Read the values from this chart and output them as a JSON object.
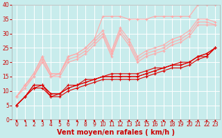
{
  "xlabel": "Vent moyen/en rafales ( km/h )",
  "xlim": [
    -0.5,
    23.5
  ],
  "ylim": [
    0,
    40
  ],
  "xticks": [
    0,
    1,
    2,
    3,
    4,
    5,
    6,
    7,
    8,
    9,
    10,
    11,
    12,
    13,
    14,
    15,
    16,
    17,
    18,
    19,
    20,
    21,
    22,
    23
  ],
  "yticks": [
    0,
    5,
    10,
    15,
    20,
    25,
    30,
    35,
    40
  ],
  "bg_color": "#c8ecec",
  "grid_color": "#ffffff",
  "series": [
    {
      "x": [
        0,
        1,
        2,
        3,
        4,
        5,
        6,
        7,
        8,
        9,
        10,
        11,
        12,
        13,
        14,
        15,
        16,
        17,
        18,
        19,
        20,
        21,
        22,
        23
      ],
      "y": [
        5,
        8,
        11,
        11,
        8,
        8,
        10,
        11,
        12,
        13,
        14,
        14,
        14,
        14,
        14,
        15,
        16,
        17,
        18,
        18,
        19,
        21,
        22,
        25
      ],
      "color": "#dd0000",
      "lw": 0.8,
      "marker": "+",
      "ms": 3.0
    },
    {
      "x": [
        0,
        1,
        2,
        3,
        4,
        5,
        6,
        7,
        8,
        9,
        10,
        11,
        12,
        13,
        14,
        15,
        16,
        17,
        18,
        19,
        20,
        21,
        22,
        23
      ],
      "y": [
        5,
        8,
        11,
        12,
        8,
        9,
        11,
        12,
        13,
        14,
        15,
        15,
        15,
        15,
        15,
        16,
        17,
        18,
        19,
        19,
        20,
        22,
        22,
        25
      ],
      "color": "#dd0000",
      "lw": 0.8,
      "marker": "+",
      "ms": 3.0
    },
    {
      "x": [
        0,
        1,
        2,
        3,
        4,
        5,
        6,
        7,
        8,
        9,
        10,
        11,
        12,
        13,
        14,
        15,
        16,
        17,
        18,
        19,
        20,
        21,
        22,
        23
      ],
      "y": [
        5,
        8,
        12,
        12,
        9,
        9,
        11,
        12,
        13,
        14,
        15,
        16,
        16,
        16,
        16,
        17,
        18,
        18,
        19,
        19,
        20,
        22,
        23,
        25
      ],
      "color": "#dd0000",
      "lw": 0.8,
      "marker": "+",
      "ms": 3.0
    },
    {
      "x": [
        0,
        1,
        2,
        3,
        4,
        5,
        6,
        7,
        8,
        9,
        10,
        11,
        12,
        13,
        14,
        15,
        16,
        17,
        18,
        19,
        20,
        21,
        22,
        23
      ],
      "y": [
        5,
        8,
        12,
        12,
        9,
        9,
        12,
        12,
        14,
        14,
        15,
        15,
        15,
        15,
        15,
        16,
        17,
        18,
        19,
        20,
        20,
        22,
        23,
        25
      ],
      "color": "#dd0000",
      "lw": 0.8,
      "marker": "+",
      "ms": 3.0
    },
    {
      "x": [
        0,
        1,
        2,
        3,
        4,
        5,
        6,
        7,
        8,
        9,
        10,
        11,
        12,
        13,
        14,
        15,
        16,
        17,
        18,
        19,
        20,
        21,
        22,
        23
      ],
      "y": [
        8,
        11,
        15,
        20,
        15,
        15,
        20,
        21,
        23,
        26,
        29,
        22,
        30,
        26,
        20,
        22,
        23,
        24,
        26,
        27,
        29,
        33,
        33,
        33
      ],
      "color": "#ffaaaa",
      "lw": 0.8,
      "marker": "+",
      "ms": 3.0
    },
    {
      "x": [
        0,
        1,
        2,
        3,
        4,
        5,
        6,
        7,
        8,
        9,
        10,
        11,
        12,
        13,
        14,
        15,
        16,
        17,
        18,
        19,
        20,
        21,
        22,
        23
      ],
      "y": [
        8,
        12,
        15,
        21,
        15,
        16,
        21,
        22,
        24,
        27,
        30,
        23,
        31,
        27,
        21,
        23,
        24,
        25,
        27,
        28,
        30,
        34,
        34,
        33
      ],
      "color": "#ffaaaa",
      "lw": 0.8,
      "marker": "+",
      "ms": 3.0
    },
    {
      "x": [
        0,
        1,
        2,
        3,
        4,
        5,
        6,
        7,
        8,
        9,
        10,
        11,
        12,
        13,
        14,
        15,
        16,
        17,
        18,
        19,
        20,
        21,
        22,
        23
      ],
      "y": [
        8,
        12,
        16,
        22,
        16,
        16,
        22,
        23,
        25,
        28,
        31,
        24,
        32,
        28,
        22,
        24,
        25,
        26,
        28,
        29,
        31,
        35,
        35,
        34
      ],
      "color": "#ffaaaa",
      "lw": 0.8,
      "marker": "+",
      "ms": 3.0
    },
    {
      "x": [
        0,
        1,
        2,
        3,
        4,
        5,
        6,
        7,
        8,
        9,
        10,
        11,
        12,
        13,
        14,
        15,
        16,
        17,
        18,
        19,
        20,
        21,
        22,
        23
      ],
      "y": [
        8,
        12,
        16,
        22,
        16,
        16,
        22,
        23,
        25,
        28,
        36,
        36,
        36,
        35,
        35,
        35,
        36,
        36,
        36,
        36,
        36,
        40,
        40,
        40
      ],
      "color": "#ffaaaa",
      "lw": 0.8,
      "marker": "+",
      "ms": 3.0
    }
  ],
  "arrow_color": "#cc0000",
  "xlabel_color": "#cc0000",
  "xlabel_fontsize": 7,
  "tick_color": "#cc0000",
  "tick_fontsize": 5.5
}
